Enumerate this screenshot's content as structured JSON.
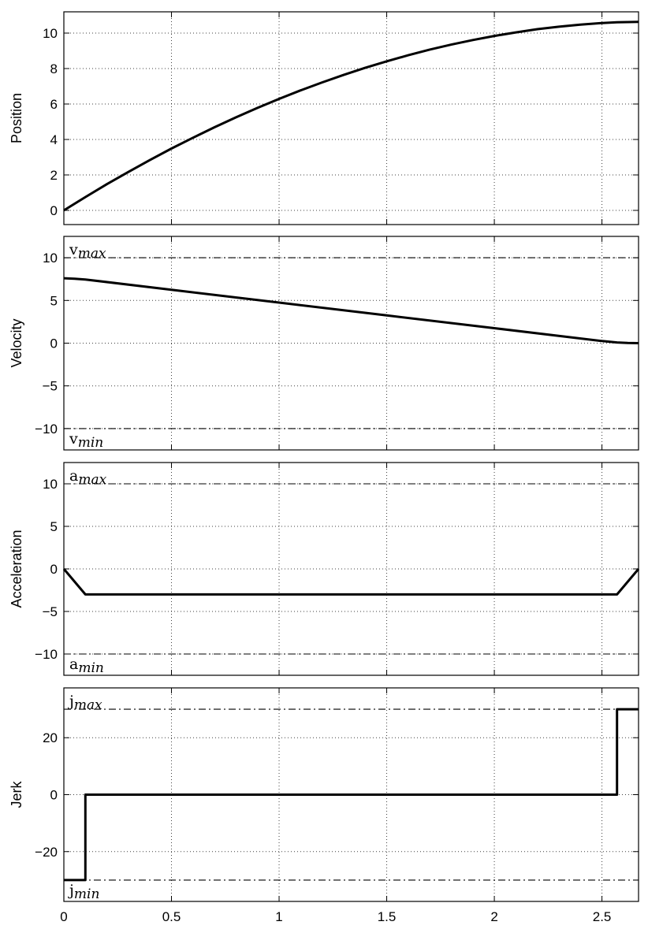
{
  "chart_data": [
    {
      "type": "line",
      "ylabel": "Position",
      "xlim": [
        0,
        2.67
      ],
      "ylim": [
        -0.8,
        11.2
      ],
      "yticks": [
        0,
        2,
        4,
        6,
        8,
        10
      ],
      "xticks": [
        0,
        0.5,
        1,
        1.5,
        2,
        2.5
      ],
      "show_xtick_labels": false,
      "grid": true,
      "limits": [],
      "series": [
        {
          "x": [
            0,
            0.1,
            0.2,
            0.3,
            0.4,
            0.5,
            0.6,
            0.7,
            0.8,
            0.9,
            1.0,
            1.1,
            1.2,
            1.3,
            1.4,
            1.5,
            1.6,
            1.7,
            1.8,
            1.9,
            2.0,
            2.1,
            2.2,
            2.3,
            2.4,
            2.5,
            2.57,
            2.67
          ],
          "y": [
            0,
            0.75,
            1.48,
            2.17,
            2.84,
            3.49,
            4.1,
            4.69,
            5.25,
            5.78,
            6.29,
            6.77,
            7.22,
            7.64,
            8.04,
            8.41,
            8.75,
            9.07,
            9.35,
            9.61,
            9.84,
            10.04,
            10.22,
            10.36,
            10.48,
            10.57,
            10.61,
            10.63
          ]
        }
      ]
    },
    {
      "type": "line",
      "ylabel": "Velocity",
      "xlim": [
        0,
        2.67
      ],
      "ylim": [
        -12.5,
        12.5
      ],
      "yticks": [
        -10,
        -5,
        0,
        5,
        10
      ],
      "xticks": [
        0,
        0.5,
        1,
        1.5,
        2,
        2.5
      ],
      "show_xtick_labels": false,
      "grid": true,
      "limits": [
        {
          "value": 10,
          "label_main": "v",
          "label_sub": "max",
          "label_position": "above"
        },
        {
          "value": -10,
          "label_main": "v",
          "label_sub": "min",
          "label_position": "below"
        }
      ],
      "series": [
        {
          "x": [
            0,
            0.05,
            0.1,
            0.5,
            1.0,
            1.5,
            2.0,
            2.5,
            2.57,
            2.62,
            2.67
          ],
          "y": [
            7.6,
            7.55,
            7.45,
            6.25,
            4.75,
            3.25,
            1.75,
            0.25,
            0.08,
            0.02,
            0.0
          ]
        }
      ]
    },
    {
      "type": "line",
      "ylabel": "Acceleration",
      "xlim": [
        0,
        2.67
      ],
      "ylim": [
        -12.5,
        12.5
      ],
      "yticks": [
        -10,
        -5,
        0,
        5,
        10
      ],
      "xticks": [
        0,
        0.5,
        1,
        1.5,
        2,
        2.5
      ],
      "show_xtick_labels": false,
      "grid": true,
      "limits": [
        {
          "value": 10,
          "label_main": "a",
          "label_sub": "max",
          "label_position": "above"
        },
        {
          "value": -10,
          "label_main": "a",
          "label_sub": "min",
          "label_position": "below"
        }
      ],
      "series": [
        {
          "x": [
            0,
            0.1,
            2.57,
            2.67
          ],
          "y": [
            0,
            -3,
            -3,
            0
          ]
        }
      ]
    },
    {
      "type": "line",
      "ylabel": "Jerk",
      "xlim": [
        0,
        2.67
      ],
      "ylim": [
        -37.5,
        37.5
      ],
      "yticks": [
        -20,
        0,
        20
      ],
      "xticks": [
        0,
        0.5,
        1,
        1.5,
        2,
        2.5
      ],
      "show_xtick_labels": true,
      "grid": true,
      "limits": [
        {
          "value": 30,
          "label_main": "j",
          "label_sub": "max",
          "label_position": "above"
        },
        {
          "value": -30,
          "label_main": "j",
          "label_sub": "min",
          "label_position": "below"
        }
      ],
      "series": [
        {
          "x": [
            0,
            0.1,
            0.1,
            2.57,
            2.57,
            2.67
          ],
          "y": [
            -30,
            -30,
            0,
            0,
            30,
            30
          ]
        }
      ]
    }
  ]
}
